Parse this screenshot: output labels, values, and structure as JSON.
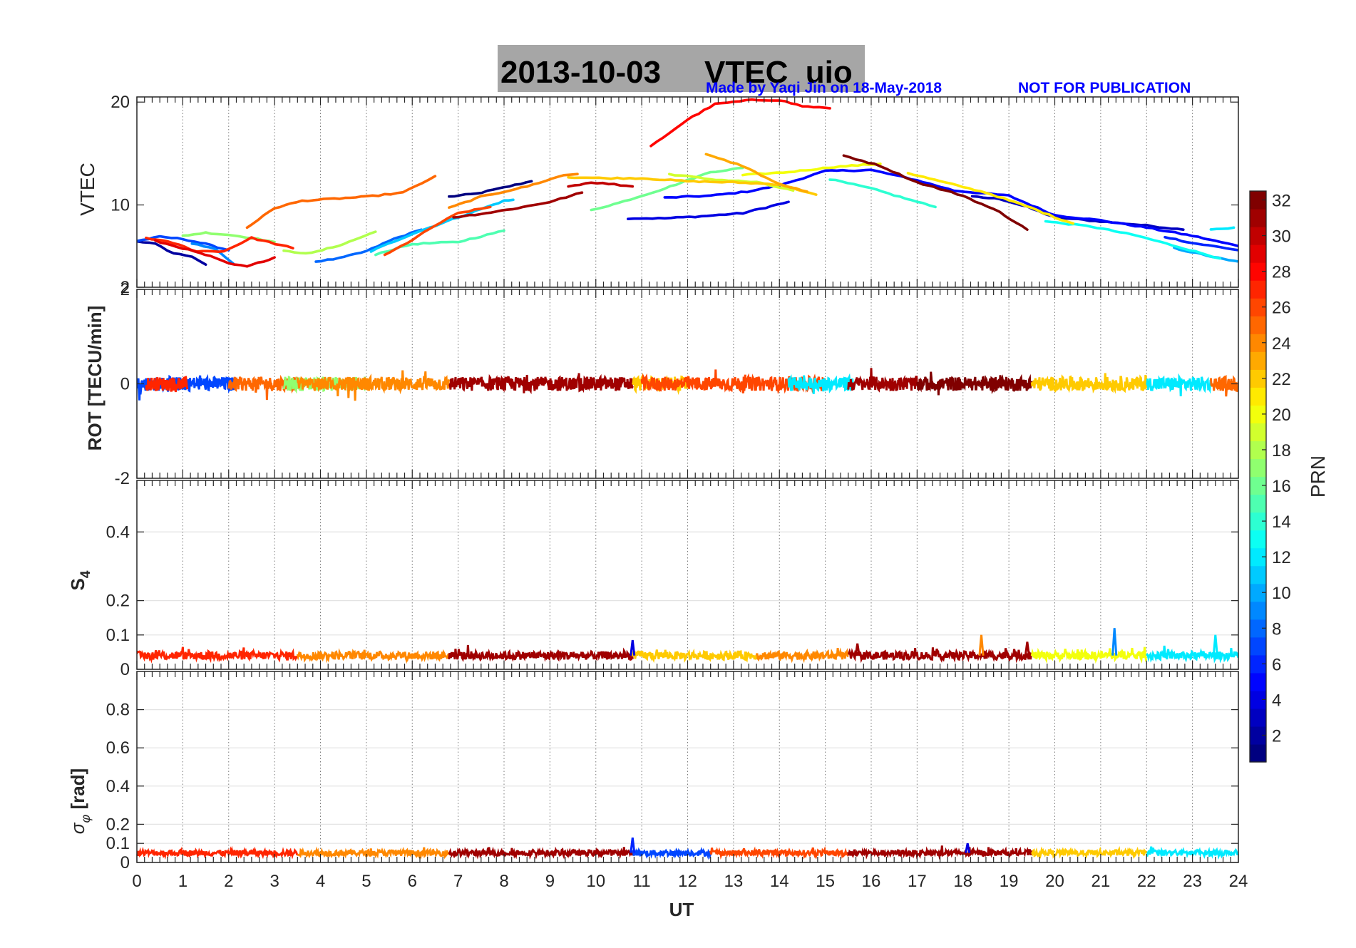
{
  "title": {
    "date": "2013-10-03",
    "name": "VTEC  uio"
  },
  "credit": "Made by Yaqi Jin on 18-May-2018",
  "notice": "NOT FOR PUBLICATION",
  "x_axis": {
    "label": "UT",
    "range": [
      0,
      24
    ],
    "ticks": [
      "0",
      "1",
      "2",
      "3",
      "4",
      "5",
      "6",
      "7",
      "8",
      "9",
      "10",
      "11",
      "12",
      "13",
      "14",
      "15",
      "16",
      "17",
      "18",
      "19",
      "20",
      "21",
      "22",
      "23",
      "24"
    ]
  },
  "colorbar": {
    "label": "PRN",
    "range": [
      1,
      32
    ],
    "ticks": [
      "2",
      "4",
      "6",
      "8",
      "10",
      "12",
      "14",
      "16",
      "18",
      "20",
      "22",
      "24",
      "26",
      "28",
      "30",
      "32"
    ],
    "colormap": "jet"
  },
  "chart_data": [
    {
      "type": "line",
      "panel": "vtec",
      "ylabel": "VTEC",
      "ylim": [
        2,
        20.5
      ],
      "yticks": [
        "2",
        "10",
        "20"
      ],
      "grid": "vertical dotted at each UT hour",
      "series": [
        {
          "prn": 1,
          "points": [
            [
              6.8,
              10.8
            ],
            [
              7.4,
              11.1
            ],
            [
              8,
              11.7
            ],
            [
              8.6,
              12.3
            ]
          ]
        },
        {
          "prn": 2,
          "points": [
            [
              0,
              6.5
            ],
            [
              0.4,
              6.2
            ],
            [
              0.8,
              5.3
            ],
            [
              1.2,
              5.0
            ],
            [
              1.5,
              4.2
            ]
          ]
        },
        {
          "prn": 3,
          "points": [
            [
              18.2,
              10.8
            ],
            [
              18.8,
              10.6
            ],
            [
              19.4,
              9.8
            ],
            [
              20,
              8.8
            ],
            [
              21,
              8.4
            ],
            [
              22,
              8.0
            ],
            [
              22.8,
              7.6
            ]
          ]
        },
        {
          "prn": 4,
          "points": [
            [
              10.7,
              8.7
            ],
            [
              11.5,
              8.7
            ],
            [
              12.3,
              8.9
            ],
            [
              13.2,
              9.2
            ],
            [
              14.2,
              10.3
            ]
          ]
        },
        {
          "prn": 5,
          "points": [
            [
              11.5,
              10.7
            ],
            [
              12.5,
              10.9
            ],
            [
              13.3,
              11.3
            ],
            [
              14,
              11.9
            ],
            [
              15,
              13.3
            ],
            [
              16,
              13.4
            ],
            [
              17,
              12.4
            ],
            [
              17.8,
              11.4
            ],
            [
              19,
              10.9
            ],
            [
              20,
              9.0
            ],
            [
              21,
              8.5
            ],
            [
              22,
              7.8
            ],
            [
              23,
              7.0
            ],
            [
              24,
              6.0
            ]
          ]
        },
        {
          "prn": 6,
          "points": [
            [
              22.4,
              6.9
            ],
            [
              23,
              6.3
            ],
            [
              23.6,
              5.9
            ],
            [
              24,
              5.6
            ]
          ]
        },
        {
          "prn": 7,
          "points": [
            [
              0,
              6.5
            ],
            [
              0.5,
              6.9
            ],
            [
              1,
              6.7
            ],
            [
              1.5,
              6.2
            ],
            [
              2,
              5.6
            ]
          ]
        },
        {
          "prn": 8,
          "points": [
            [
              3.9,
              4.5
            ],
            [
              4.4,
              4.8
            ],
            [
              5,
              5.5
            ],
            [
              5.6,
              6.7
            ],
            [
              6.2,
              7.6
            ]
          ]
        },
        {
          "prn": 9,
          "points": [
            [
              1.2,
              6.3
            ],
            [
              1.7,
              5.7
            ],
            [
              2.1,
              4.3
            ]
          ]
        },
        {
          "prn": 10,
          "points": [
            [
              22.6,
              5.8
            ],
            [
              23.2,
              5.2
            ],
            [
              23.8,
              4.6
            ],
            [
              24,
              4.5
            ]
          ]
        },
        {
          "prn": 11,
          "points": [
            [
              5.1,
              5.5
            ],
            [
              6,
              7.2
            ],
            [
              7,
              8.8
            ],
            [
              8,
              10.4
            ],
            [
              8.2,
              10.5
            ]
          ]
        },
        {
          "prn": 12,
          "points": [
            [
              23.4,
              7.6
            ],
            [
              23.9,
              7.8
            ]
          ]
        },
        {
          "prn": 13,
          "points": [
            [
              19.8,
              8.4
            ],
            [
              20.8,
              7.9
            ],
            [
              21.8,
              7.0
            ],
            [
              22.8,
              5.8
            ],
            [
              23.6,
              4.8
            ]
          ]
        },
        {
          "prn": 14,
          "points": [
            [
              15.1,
              12.5
            ],
            [
              16,
              11.6
            ],
            [
              17,
              10.3
            ],
            [
              17.4,
              9.8
            ]
          ]
        },
        {
          "prn": 15,
          "points": [
            [
              5.2,
              5.2
            ],
            [
              6,
              6.2
            ],
            [
              7,
              6.4
            ],
            [
              8,
              7.5
            ]
          ]
        },
        {
          "prn": 16,
          "points": [
            [
              9.9,
              9.5
            ],
            [
              10.5,
              10.2
            ],
            [
              11.5,
              11.6
            ],
            [
              12.5,
              13.2
            ],
            [
              13.2,
              13.6
            ]
          ]
        },
        {
          "prn": 17,
          "points": [
            [
              1,
              7.0
            ],
            [
              1.5,
              7.3
            ],
            [
              2,
              7.1
            ],
            [
              2.5,
              6.8
            ],
            [
              3,
              6.4
            ]
          ]
        },
        {
          "prn": 18,
          "points": [
            [
              3.2,
              5.5
            ],
            [
              3.8,
              5.3
            ],
            [
              4.5,
              6.2
            ],
            [
              5.2,
              7.4
            ]
          ]
        },
        {
          "prn": 19,
          "points": [
            [
              11.6,
              13.0
            ],
            [
              12.5,
              12.5
            ],
            [
              13.5,
              12.2
            ],
            [
              14.3,
              11.4
            ]
          ]
        },
        {
          "prn": 20,
          "points": [
            [
              13.2,
              12.9
            ],
            [
              14.2,
              13.2
            ],
            [
              15.2,
              13.7
            ],
            [
              16.2,
              14.0
            ]
          ]
        },
        {
          "prn": 21,
          "points": [
            [
              16.8,
              13.1
            ],
            [
              17.5,
              12.3
            ],
            [
              18.5,
              11.2
            ],
            [
              19.5,
              9.7
            ],
            [
              20,
              8.8
            ],
            [
              20.4,
              8.2
            ]
          ]
        },
        {
          "prn": 22,
          "points": [
            [
              9.4,
              12.7
            ],
            [
              10.2,
              12.6
            ],
            [
              11,
              12.6
            ],
            [
              12,
              12.3
            ],
            [
              13,
              12.2
            ],
            [
              14,
              12.0
            ],
            [
              14.8,
              11.0
            ]
          ]
        },
        {
          "prn": 23,
          "points": [
            [
              12.4,
              14.9
            ],
            [
              13.2,
              13.8
            ],
            [
              14,
              12.0
            ],
            [
              14.6,
              11.3
            ]
          ]
        },
        {
          "prn": 24,
          "points": [
            [
              6.8,
              9.7
            ],
            [
              7.5,
              10.8
            ],
            [
              8.5,
              11.8
            ],
            [
              9.3,
              12.9
            ],
            [
              9.6,
              13.0
            ]
          ]
        },
        {
          "prn": 25,
          "points": [
            [
              2.4,
              7.8
            ],
            [
              3,
              9.7
            ],
            [
              3.6,
              10.4
            ],
            [
              4.3,
              10.6
            ],
            [
              5,
              10.8
            ],
            [
              5.8,
              11.2
            ],
            [
              6.2,
              12.1
            ],
            [
              6.5,
              12.8
            ]
          ]
        },
        {
          "prn": 26,
          "points": [
            [
              5.4,
              5.1
            ],
            [
              6,
              6.6
            ],
            [
              6.5,
              8.0
            ],
            [
              7,
              9.2
            ],
            [
              7.7,
              9.8
            ]
          ]
        },
        {
          "prn": 27,
          "points": [
            [
              0.2,
              6.8
            ],
            [
              0.8,
              6.3
            ],
            [
              1.3,
              5.5
            ],
            [
              1.9,
              5.5
            ],
            [
              2.5,
              6.8
            ],
            [
              3.4,
              5.8
            ]
          ]
        },
        {
          "prn": 28,
          "points": [
            [
              11.2,
              15.7
            ],
            [
              12,
              18.3
            ],
            [
              12.6,
              19.8
            ],
            [
              13.4,
              20.2
            ],
            [
              14,
              20.2
            ],
            [
              14.5,
              19.6
            ],
            [
              15.1,
              19.4
            ]
          ]
        },
        {
          "prn": 29,
          "points": [
            [
              0.4,
              6.5
            ],
            [
              1,
              5.8
            ],
            [
              1.6,
              5.0
            ],
            [
              2,
              4.3
            ],
            [
              2.4,
              4.0
            ],
            [
              3,
              4.9
            ]
          ]
        },
        {
          "prn": 30,
          "points": [
            [
              9.4,
              11.8
            ],
            [
              9.9,
              12.2
            ],
            [
              10.4,
              12.0
            ],
            [
              10.8,
              11.8
            ]
          ]
        },
        {
          "prn": 31,
          "points": [
            [
              6.9,
              8.8
            ],
            [
              7.6,
              9.2
            ],
            [
              8.3,
              9.7
            ],
            [
              9,
              10.3
            ],
            [
              9.7,
              11.2
            ]
          ]
        },
        {
          "prn": 32,
          "points": [
            [
              15.4,
              14.8
            ],
            [
              16.2,
              13.8
            ],
            [
              17,
              12.2
            ],
            [
              18,
              10.9
            ],
            [
              18.8,
              9.3
            ],
            [
              19.4,
              7.6
            ]
          ]
        }
      ]
    },
    {
      "type": "line",
      "panel": "rot",
      "ylabel": "ROT [TECU/min]",
      "ylim": [
        -2,
        2
      ],
      "yticks": [
        "-2",
        "0",
        "2"
      ],
      "grid": "vertical dotted at each UT hour",
      "baseline": 0,
      "typical_amplitude": 0.15,
      "max_excursion": 0.6,
      "segments": [
        {
          "prn": 7,
          "start": 0.0,
          "end": 2.1
        },
        {
          "prn": 27,
          "start": 0.2,
          "end": 1.1
        },
        {
          "prn": 25,
          "start": 2.0,
          "end": 3.5
        },
        {
          "prn": 17,
          "start": 3.2,
          "end": 5.0
        },
        {
          "prn": 24,
          "start": 3.5,
          "end": 6.8
        },
        {
          "prn": 31,
          "start": 6.8,
          "end": 10.8
        },
        {
          "prn": 22,
          "start": 10.8,
          "end": 12.0
        },
        {
          "prn": 26,
          "start": 11.0,
          "end": 15.0
        },
        {
          "prn": 12,
          "start": 14.2,
          "end": 15.6
        },
        {
          "prn": 31,
          "start": 15.5,
          "end": 17.0
        },
        {
          "prn": 32,
          "start": 17.0,
          "end": 19.5
        },
        {
          "prn": 22,
          "start": 19.5,
          "end": 22.0
        },
        {
          "prn": 12,
          "start": 22.0,
          "end": 23.4
        },
        {
          "prn": 25,
          "start": 23.4,
          "end": 24.0
        }
      ]
    },
    {
      "type": "line",
      "panel": "s4",
      "ylabel": "S4",
      "ylim": [
        0,
        0.55
      ],
      "yticks": [
        "0",
        "0.1",
        "0.2",
        "0.4"
      ],
      "grid": "vertical dotted at each UT hour, horizontal at y ticks",
      "typical_value": 0.04,
      "spikes": [
        {
          "x": 10.8,
          "y": 0.085,
          "prn": 4
        },
        {
          "x": 15.7,
          "y": 0.075,
          "prn": 31
        },
        {
          "x": 18.4,
          "y": 0.1,
          "prn": 24
        },
        {
          "x": 19.4,
          "y": 0.08,
          "prn": 31
        },
        {
          "x": 21.3,
          "y": 0.12,
          "prn": 9
        },
        {
          "x": 23.5,
          "y": 0.1,
          "prn": 12
        }
      ],
      "segments": [
        {
          "prn": 27,
          "start": 0.0,
          "end": 3.5
        },
        {
          "prn": 24,
          "start": 3.5,
          "end": 6.8
        },
        {
          "prn": 31,
          "start": 6.8,
          "end": 10.8
        },
        {
          "prn": 22,
          "start": 10.8,
          "end": 13.5
        },
        {
          "prn": 24,
          "start": 13.5,
          "end": 15.5
        },
        {
          "prn": 31,
          "start": 15.5,
          "end": 19.5
        },
        {
          "prn": 20,
          "start": 19.5,
          "end": 22.0
        },
        {
          "prn": 12,
          "start": 22.0,
          "end": 24.0
        }
      ]
    },
    {
      "type": "line",
      "panel": "sigma_phi",
      "ylabel": "σ_φ [rad]",
      "ylim": [
        0,
        1
      ],
      "yticks": [
        "0",
        "0.1",
        "0.2",
        "0.4",
        "0.6",
        "0.8"
      ],
      "grid": "vertical dotted at each UT hour, horizontal at y ticks",
      "typical_value": 0.05,
      "spikes": [
        {
          "x": 10.8,
          "y": 0.13,
          "prn": 6
        },
        {
          "x": 18.1,
          "y": 0.1,
          "prn": 4
        }
      ],
      "segments": [
        {
          "prn": 27,
          "start": 0.0,
          "end": 3.5
        },
        {
          "prn": 24,
          "start": 3.5,
          "end": 6.8
        },
        {
          "prn": 31,
          "start": 6.8,
          "end": 10.8
        },
        {
          "prn": 7,
          "start": 10.8,
          "end": 12.5
        },
        {
          "prn": 26,
          "start": 12.5,
          "end": 15.5
        },
        {
          "prn": 31,
          "start": 15.5,
          "end": 19.5
        },
        {
          "prn": 22,
          "start": 19.5,
          "end": 22.0
        },
        {
          "prn": 12,
          "start": 22.0,
          "end": 24.0
        }
      ]
    }
  ]
}
